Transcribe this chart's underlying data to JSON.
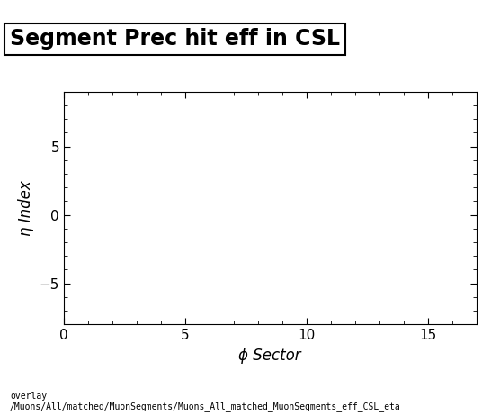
{
  "title": "Segment Prec hit eff in CSL",
  "xlabel": "ϕ Sector",
  "ylabel": "η Index",
  "xlim": [
    0,
    17
  ],
  "ylim": [
    -8,
    9
  ],
  "xticks": [
    0,
    5,
    10,
    15
  ],
  "yticks": [
    -5,
    0,
    5
  ],
  "background_color": "#ffffff",
  "title_fontsize": 17,
  "label_fontsize": 12,
  "tick_fontsize": 11,
  "footer_text": "overlay\n/Muons/All/matched/MuonSegments/Muons_All_matched_MuonSegments_eff_CSL_eta",
  "footer_fontsize": 7
}
